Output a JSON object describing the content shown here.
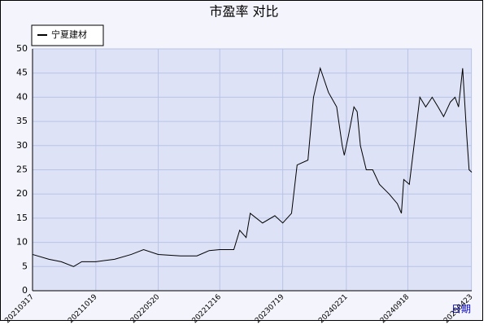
{
  "chart_data": {
    "type": "line",
    "title": "市盈率  对比",
    "x_label": "日期",
    "x": [
      "20210317",
      "20210512",
      "20210623",
      "20210804",
      "20210901",
      "20211019",
      "20211222",
      "20220217",
      "20220331",
      "20220520",
      "20220804",
      "20220929",
      "20221110",
      "20221216",
      "20230202",
      "20230222",
      "20230316",
      "20230330",
      "20230511",
      "20230622",
      "20230719",
      "20230818",
      "20230906",
      "20231013",
      "20231101",
      "20231124",
      "20231222",
      "20240119",
      "20240207",
      "20240214",
      "20240228",
      "20240318",
      "20240329",
      "20240409",
      "20240429",
      "20240521",
      "20240613",
      "20240716",
      "20240813",
      "20240827",
      "20240904",
      "20240923",
      "20241013",
      "20241029",
      "20241118",
      "20241210",
      "20241230",
      "20250118",
      "20250210",
      "20250226",
      "20250310",
      "20250324",
      "20250407",
      "20250415",
      "20250424"
    ],
    "series": [
      {
        "name": "宁夏建材",
        "color": "#000000",
        "values": [
          7.5,
          6.5,
          6,
          5,
          6,
          6,
          6.5,
          7.5,
          8.5,
          7.5,
          7.2,
          7.2,
          8.3,
          8.5,
          8.5,
          12.5,
          11,
          16,
          14,
          15.5,
          14,
          16,
          26,
          27,
          40,
          46,
          41,
          38,
          30,
          28,
          32,
          38,
          37,
          30,
          25,
          25,
          22,
          20,
          18,
          16,
          23,
          22,
          32,
          40,
          38,
          40,
          38,
          36,
          39,
          40,
          38,
          46,
          32,
          25,
          24.5
        ]
      }
    ],
    "xlim": [
      "20210317",
      "20250424"
    ],
    "xticks": [
      "20210317",
      "20211019",
      "20220520",
      "20221216",
      "20230719",
      "20240221",
      "20240918",
      "20250423"
    ],
    "ylim": [
      0,
      50
    ],
    "yticks": [
      0,
      5,
      10,
      15,
      20,
      25,
      30,
      35,
      40,
      45,
      50
    ],
    "grid": true,
    "legend": "top-left"
  }
}
